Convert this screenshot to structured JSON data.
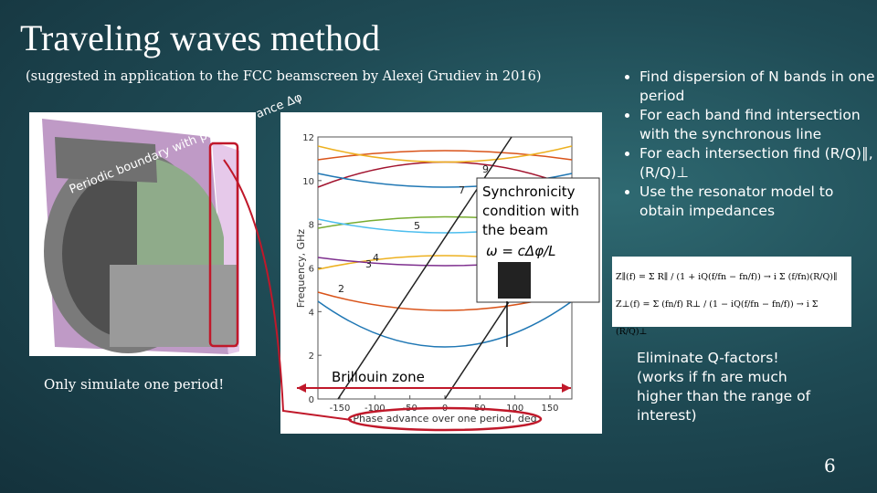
{
  "slide": {
    "title": "Traveling waves method",
    "subtitle": "(suggested in application to the FCC beamscreen by Alexej Grudiev in 2016)",
    "left_caption": "Only simulate one period!",
    "model_label": "Periodic boundary with phase advance Δφ",
    "plot": {
      "y_label": "Frequency, GHz",
      "x_label": "Phase advance over one period, deg",
      "yticks": [
        0,
        2,
        4,
        6,
        8,
        10,
        12
      ],
      "xticks": [
        -150,
        -100,
        -50,
        0,
        50,
        100,
        150
      ],
      "band_labels": [
        "2",
        "3",
        "4",
        "5",
        "7",
        "9"
      ],
      "brillouin": "Brillouin zone"
    },
    "callout": {
      "lines": [
        "Synchronicity",
        "condition with",
        "the beam"
      ],
      "formula": "ω = cΔφ/L"
    },
    "bullets": [
      "Find dispersion of N bands in one period",
      "For each band find intersection with the synchronous line",
      "For each intersection find (R/Q)∥, (R/Q)⊥",
      "Use the resonator model to obtain impedances"
    ],
    "formulas": [
      "Z∥(f) = Σ R∥ / (1 + iQ(f/fn − fn/f)) → i Σ (f/fn)(R/Q)∥",
      "Z⊥(f) = Σ (fn/f) R⊥ / (1 − iQ(f/fn − fn/f)) → i Σ (R/Q)⊥"
    ],
    "eliminate": [
      "Eliminate Q-factors!",
      "(works if fn are much",
      "higher than the range of",
      "interest)"
    ],
    "page_number": "6"
  }
}
